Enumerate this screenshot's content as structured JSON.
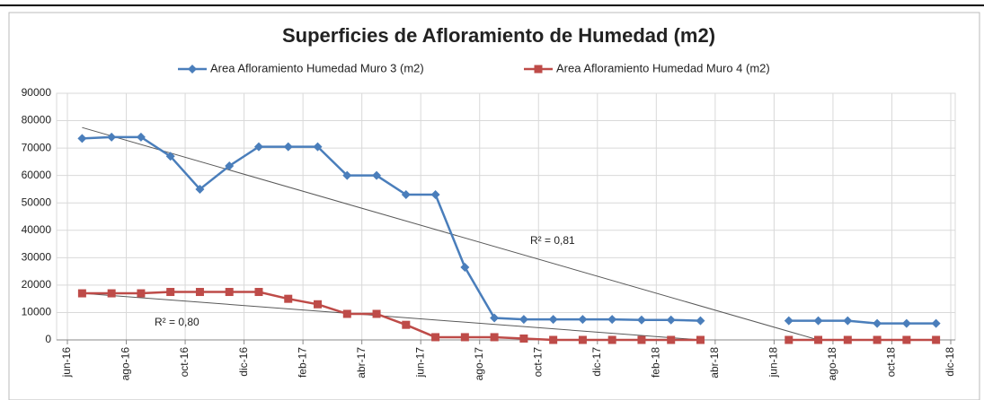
{
  "chart_data": {
    "type": "line",
    "title": "Superficies de Afloramiento de Humedad (m2)",
    "x": [
      "2016-06",
      "2016-07",
      "2016-08",
      "2016-09",
      "2016-10",
      "2016-11",
      "2016-12",
      "2017-01",
      "2017-02",
      "2017-03",
      "2017-04",
      "2017-05",
      "2017-06",
      "2017-07",
      "2017-08",
      "2017-09",
      "2017-10",
      "2017-11",
      "2017-12",
      "2018-01",
      "2018-02",
      "2018-03",
      "2018-04",
      "2018-05",
      "2018-06",
      "2018-07",
      "2018-08",
      "2018-09",
      "2018-10",
      "2018-11"
    ],
    "series": [
      {
        "name": "Area Afloramiento Humedad Muro 3 (m2)",
        "color": "#4a7ebb",
        "marker": "diamond",
        "values": [
          73500,
          74000,
          74000,
          67000,
          55000,
          63500,
          70500,
          70500,
          70500,
          60000,
          60000,
          53000,
          53000,
          26500,
          8000,
          7500,
          7500,
          7500,
          7500,
          7300,
          7300,
          7000,
          null,
          null,
          7000,
          7000,
          7000,
          6000,
          6000,
          6000
        ]
      },
      {
        "name": "Area Afloramiento Humedad Muro 4 (m2)",
        "color": "#be4b48",
        "marker": "square",
        "values": [
          17000,
          17000,
          17000,
          17500,
          17500,
          17500,
          17500,
          15000,
          13000,
          9500,
          9500,
          5500,
          1000,
          1000,
          1000,
          500,
          0,
          0,
          0,
          0,
          0,
          0,
          null,
          null,
          0,
          0,
          0,
          0,
          0,
          0
        ]
      }
    ],
    "trendlines": [
      {
        "label": "R² = 0,81",
        "x": [
          "2016-06",
          "2018-07"
        ],
        "values": [
          77500,
          0
        ],
        "color": "#595959"
      },
      {
        "label": "R² = 0,80",
        "x": [
          "2016-06",
          "2018-03"
        ],
        "values": [
          17000,
          0
        ],
        "color": "#595959"
      }
    ],
    "xlim": [
      "2016-06",
      "2018-12"
    ],
    "xticks": [
      {
        "value": "2016-06",
        "label": "jun-16"
      },
      {
        "value": "2016-08",
        "label": "ago-16"
      },
      {
        "value": "2016-10",
        "label": "oct-16"
      },
      {
        "value": "2016-12",
        "label": "dic-16"
      },
      {
        "value": "2017-02",
        "label": "feb-17"
      },
      {
        "value": "2017-04",
        "label": "abr-17"
      },
      {
        "value": "2017-06",
        "label": "jun-17"
      },
      {
        "value": "2017-08",
        "label": "ago-17"
      },
      {
        "value": "2017-10",
        "label": "oct-17"
      },
      {
        "value": "2017-12",
        "label": "dic-17"
      },
      {
        "value": "2018-02",
        "label": "feb-18"
      },
      {
        "value": "2018-04",
        "label": "abr-18"
      },
      {
        "value": "2018-06",
        "label": "jun-18"
      },
      {
        "value": "2018-08",
        "label": "ago-18"
      },
      {
        "value": "2018-10",
        "label": "oct-18"
      },
      {
        "value": "2018-12",
        "label": "dic-18"
      }
    ],
    "ylim": [
      0,
      90000
    ],
    "yticks": [
      0,
      10000,
      20000,
      30000,
      40000,
      50000,
      60000,
      70000,
      80000,
      90000
    ],
    "grid": true,
    "legend": "top"
  }
}
